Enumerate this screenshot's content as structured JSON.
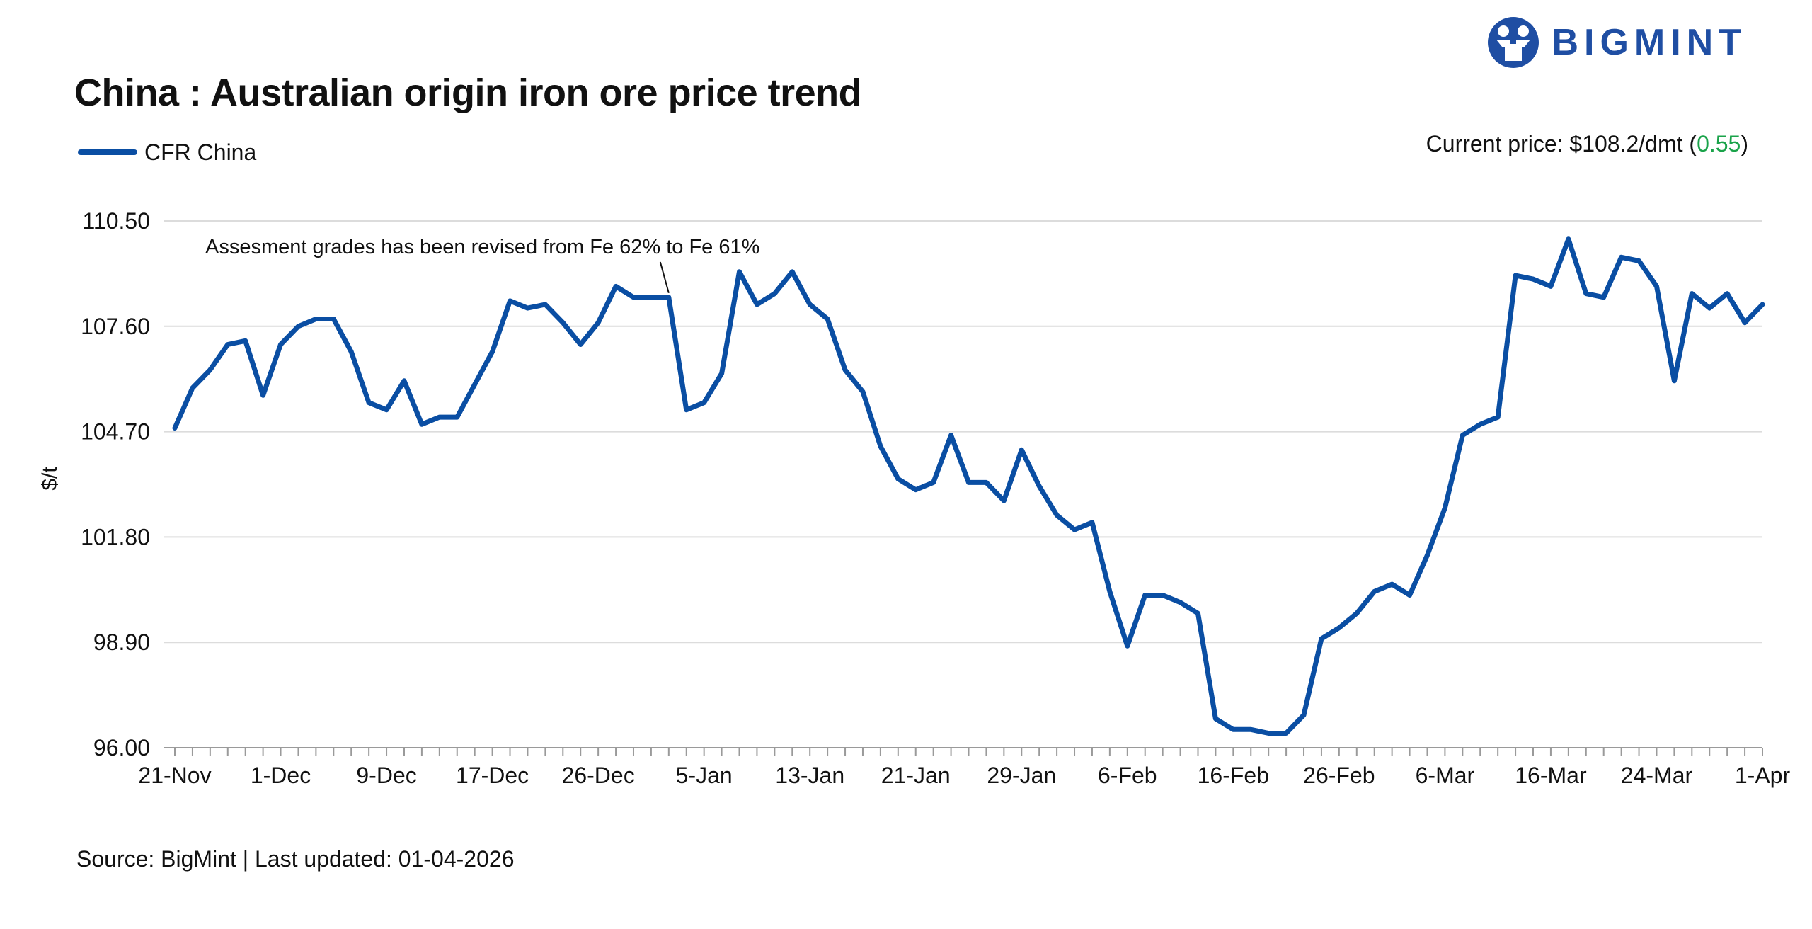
{
  "title": "China : Australian origin iron ore price trend",
  "legend": {
    "label": "CFR China",
    "color": "#0a4ea3"
  },
  "current_price": {
    "label": "Current price: $108.2/dmt (",
    "change": "0.55",
    "suffix": ")",
    "change_color": "#1aa34a"
  },
  "source": "Source: BigMint | Last updated: 01-04-2026",
  "logo": {
    "text": "BIGMINT",
    "icon": "bigmint-people-icon",
    "color": "#1f4ea3"
  },
  "chart_data": {
    "type": "line",
    "title": "China : Australian origin iron ore price trend",
    "ylabel": "$/t",
    "xlabel": "",
    "ylim": [
      96.0,
      110.5
    ],
    "yticks": [
      "96.00",
      "98.90",
      "101.80",
      "104.70",
      "107.60",
      "110.50"
    ],
    "xticks": [
      {
        "label": "21-Nov",
        "index": 0
      },
      {
        "label": "1-Dec",
        "index": 6
      },
      {
        "label": "9-Dec",
        "index": 12
      },
      {
        "label": "17-Dec",
        "index": 18
      },
      {
        "label": "26-Dec",
        "index": 24
      },
      {
        "label": "5-Jan",
        "index": 30
      },
      {
        "label": "13-Jan",
        "index": 36
      },
      {
        "label": "21-Jan",
        "index": 42
      },
      {
        "label": "29-Jan",
        "index": 48
      },
      {
        "label": "6-Feb",
        "index": 54
      },
      {
        "label": "16-Feb",
        "index": 60
      },
      {
        "label": "26-Feb",
        "index": 66
      },
      {
        "label": "6-Mar",
        "index": 72
      },
      {
        "label": "16-Mar",
        "index": 78
      },
      {
        "label": "24-Mar",
        "index": 84
      },
      {
        "label": "1-Apr",
        "index": 90
      }
    ],
    "grid": true,
    "legend_position": "top-left",
    "annotation": {
      "text": "Assesment grades has been revised from Fe 62% to Fe 61%",
      "index": 28
    },
    "series": [
      {
        "name": "CFR China",
        "color": "#0a4ea3",
        "values": [
          104.8,
          105.9,
          106.4,
          107.1,
          107.2,
          105.7,
          107.1,
          107.6,
          107.8,
          107.8,
          106.9,
          105.5,
          105.3,
          106.1,
          104.9,
          105.1,
          105.1,
          106.0,
          106.9,
          108.3,
          108.1,
          108.2,
          107.7,
          107.1,
          107.7,
          108.7,
          108.4,
          108.4,
          108.4,
          105.3,
          105.5,
          106.3,
          109.1,
          108.2,
          108.5,
          109.1,
          108.2,
          107.8,
          106.4,
          105.8,
          104.3,
          103.4,
          103.1,
          103.3,
          104.6,
          103.3,
          103.3,
          102.8,
          104.2,
          103.2,
          102.4,
          102.0,
          102.2,
          100.3,
          98.8,
          100.2,
          100.2,
          100.0,
          99.7,
          96.8,
          96.5,
          96.5,
          96.4,
          96.4,
          96.9,
          99.0,
          99.3,
          99.7,
          100.3,
          100.5,
          100.2,
          101.3,
          102.6,
          104.6,
          104.9,
          105.1,
          109.0,
          108.9,
          108.7,
          110.0,
          108.5,
          108.4,
          109.5,
          109.4,
          108.7,
          106.1,
          108.5,
          108.1,
          108.5,
          107.7,
          108.2
        ]
      }
    ]
  }
}
